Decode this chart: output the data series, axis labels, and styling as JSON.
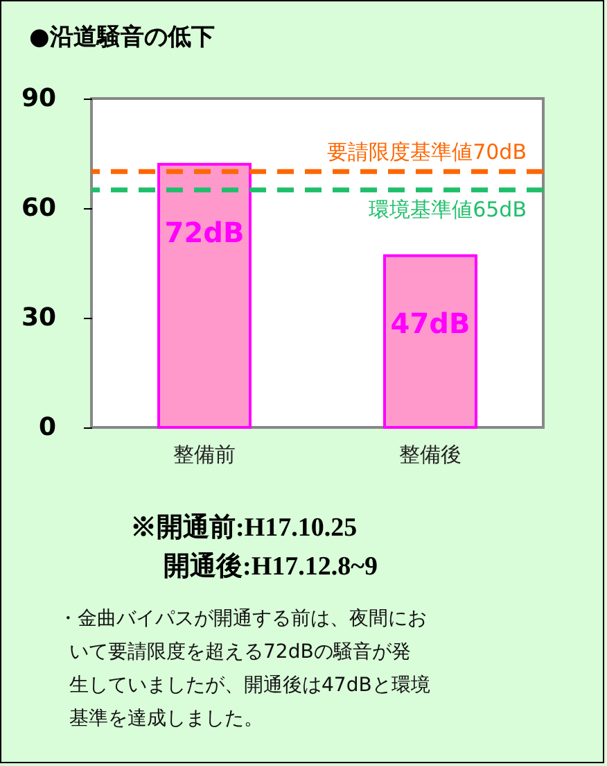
{
  "chart_data": {
    "type": "bar",
    "title": "●沿道騒音の低下",
    "categories": [
      "整備前",
      "整備後"
    ],
    "values": [
      72,
      47
    ],
    "value_labels": [
      "72dB",
      "47dB"
    ],
    "color": "#ff99cc",
    "ylim": [
      0,
      90
    ],
    "yticks": [
      0,
      30,
      60,
      90
    ],
    "grid": false,
    "ref_lines": [
      {
        "axis": "y",
        "value": 70,
        "label": "要請限度基準値70dB",
        "color": "#ff6600",
        "line_style": "dashed"
      },
      {
        "axis": "y",
        "value": 65,
        "label": "環境基準値65dB",
        "color": "#1fbf6a",
        "line_style": "dashed"
      }
    ],
    "annotations": [
      "※開通前:H17.10.25",
      "開通後:H17.12.8~9",
      "・金曲バイパスが開通する前は、夜間にお",
      "いて要請限度を超える72dBの騒音が発",
      "生していましたが、開通後は47dBと環境",
      "基準を達成しました。"
    ]
  }
}
